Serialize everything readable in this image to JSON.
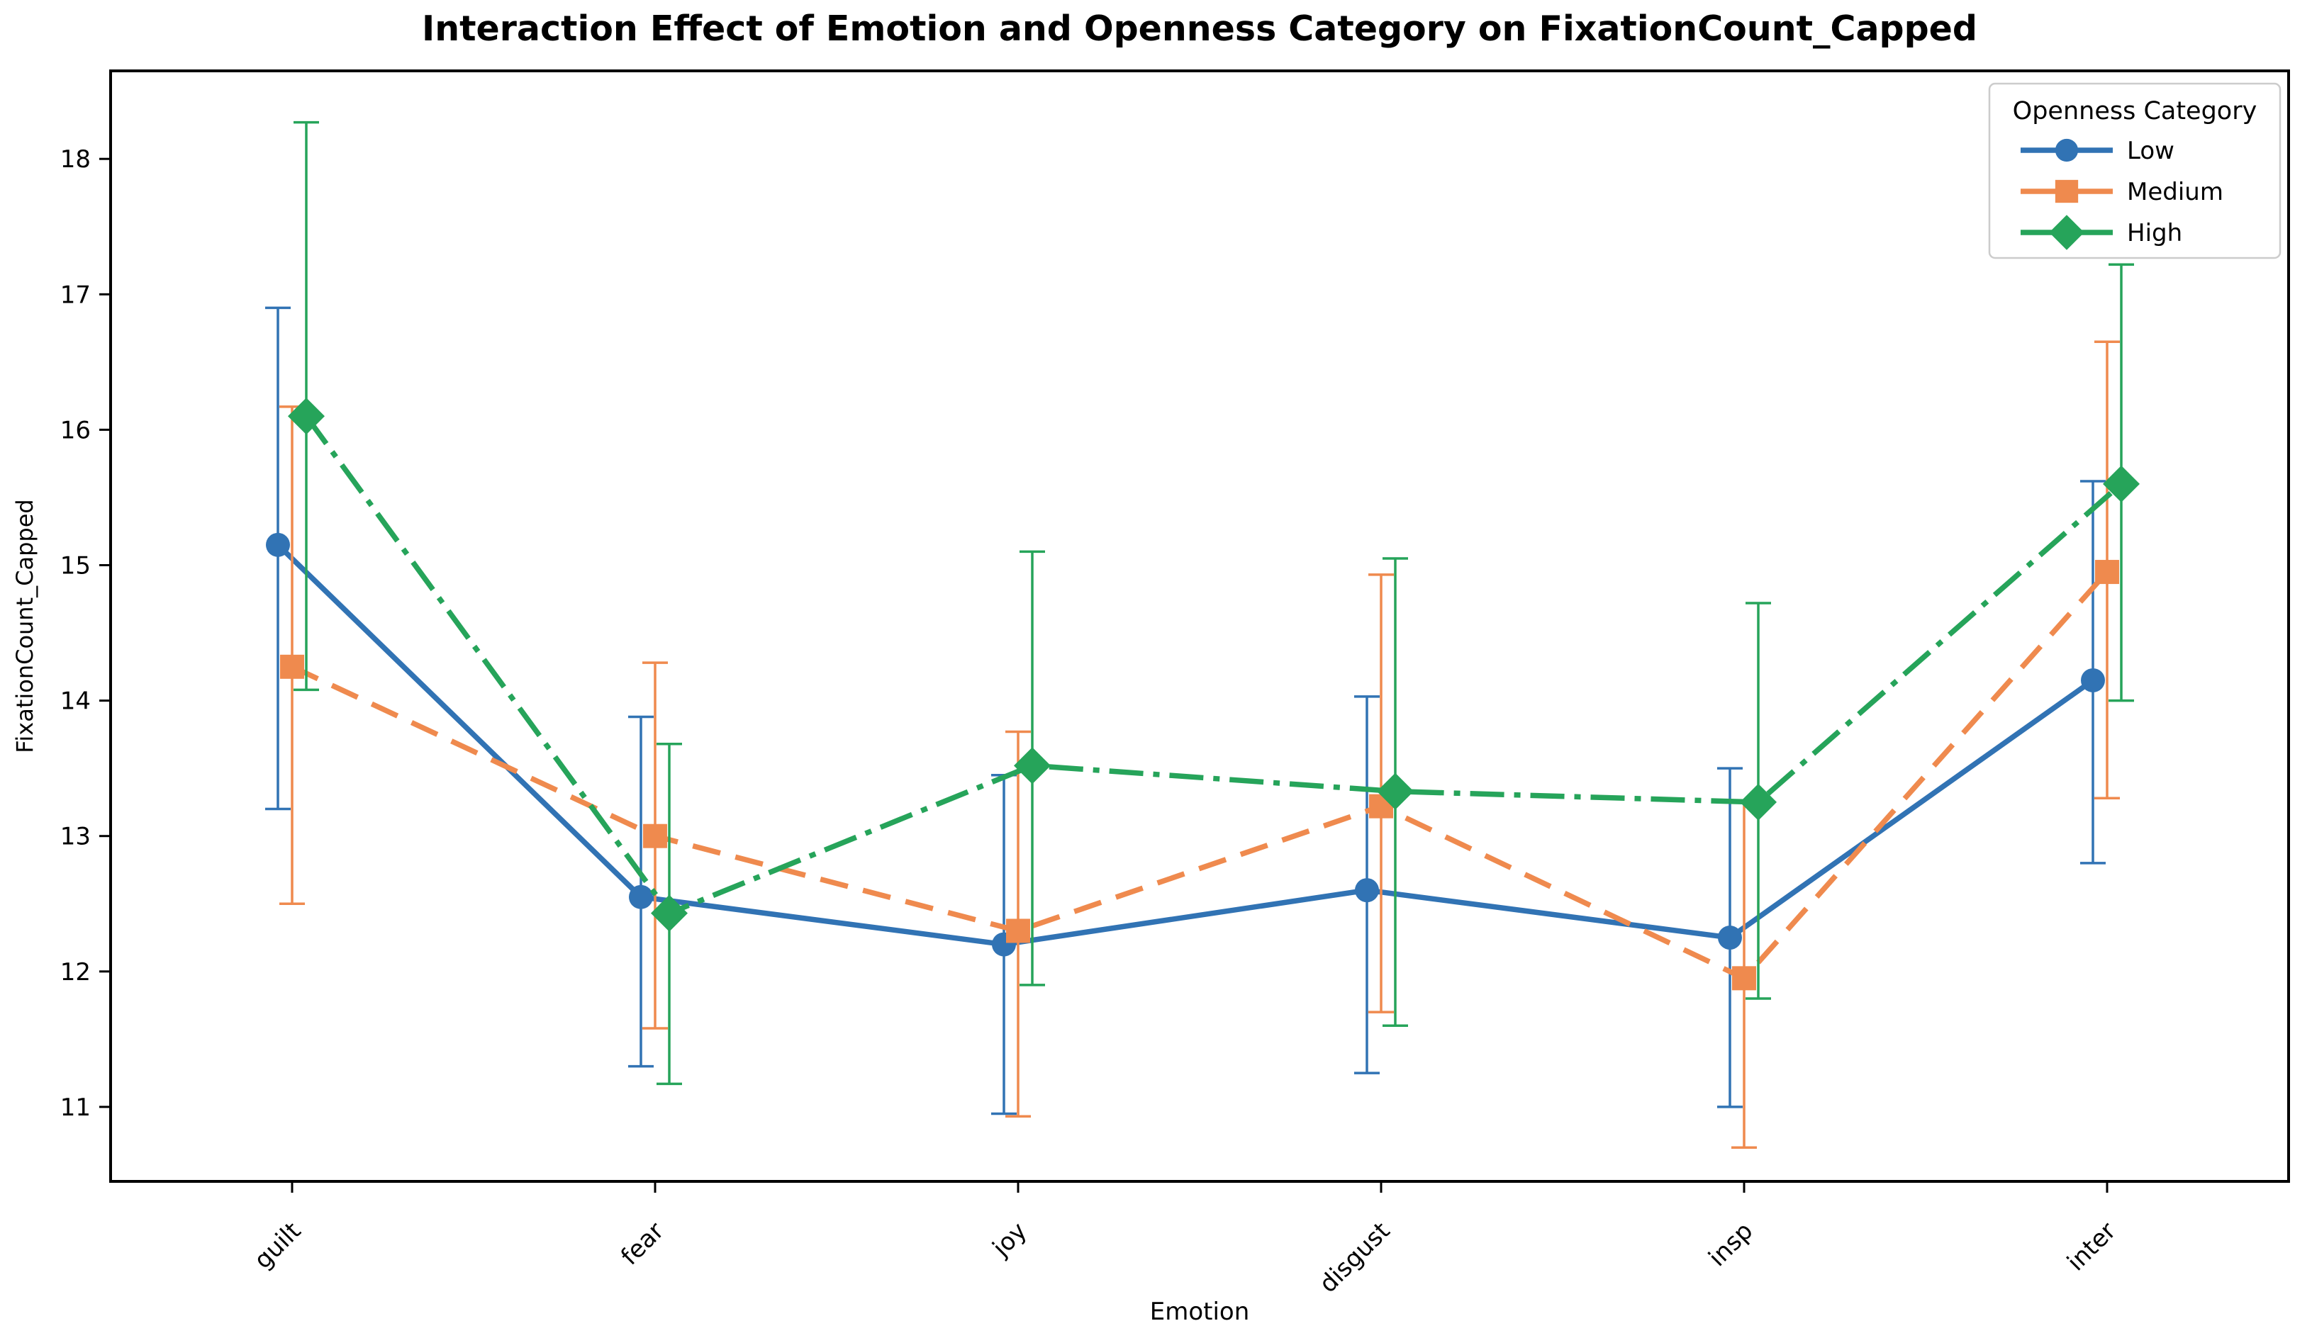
{
  "chart_data": {
    "type": "line",
    "title": "Interaction Effect of Emotion and Openness Category on FixationCount_Capped",
    "xlabel": "Emotion",
    "ylabel": "FixationCount_Capped",
    "categories": [
      "guilt",
      "fear",
      "joy",
      "disgust",
      "insp",
      "inter"
    ],
    "yticks": [
      11,
      12,
      13,
      14,
      15,
      16,
      17,
      18
    ],
    "ylim": [
      10.45,
      18.65
    ],
    "grid": false,
    "error_bars": true,
    "legend": {
      "title": "Openness Category",
      "position": "upper right"
    },
    "series": [
      {
        "name": "Low",
        "color": "#3173b4",
        "marker": "circle",
        "linestyle": "solid",
        "values": [
          15.15,
          12.55,
          12.2,
          12.6,
          12.25,
          14.15
        ],
        "err_low": [
          13.2,
          11.3,
          10.95,
          11.25,
          11.0,
          12.8
        ],
        "err_high": [
          16.9,
          13.88,
          13.45,
          14.03,
          13.5,
          15.62
        ]
      },
      {
        "name": "Medium",
        "color": "#ef8a4e",
        "marker": "square",
        "linestyle": "dashed",
        "values": [
          14.25,
          13.0,
          12.3,
          13.22,
          11.95,
          14.95
        ],
        "err_low": [
          12.5,
          11.58,
          10.93,
          11.7,
          10.7,
          13.28
        ],
        "err_high": [
          16.17,
          14.28,
          13.77,
          14.93,
          13.25,
          16.65
        ]
      },
      {
        "name": "High",
        "color": "#26a45a",
        "marker": "diamond",
        "linestyle": "dashdot",
        "values": [
          16.1,
          12.43,
          13.52,
          13.33,
          13.25,
          15.6
        ],
        "err_low": [
          14.08,
          11.17,
          11.9,
          11.6,
          11.8,
          14.0
        ],
        "err_high": [
          18.27,
          13.68,
          15.1,
          15.05,
          14.72,
          17.22
        ]
      }
    ]
  }
}
